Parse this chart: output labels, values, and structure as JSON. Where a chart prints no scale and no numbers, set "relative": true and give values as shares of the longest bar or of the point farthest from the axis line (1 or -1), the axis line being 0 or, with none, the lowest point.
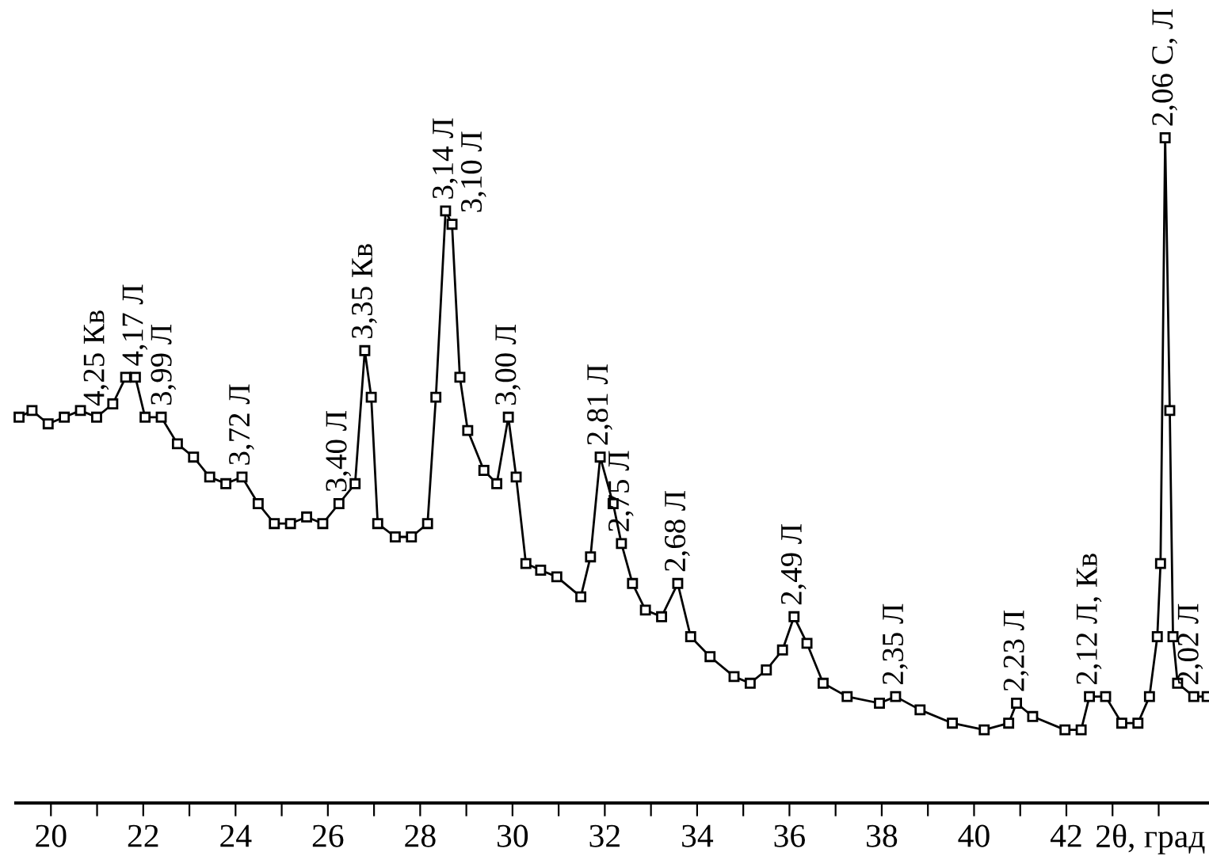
{
  "chart_data": {
    "type": "line",
    "relative": true,
    "xlabel": "2θ, град",
    "marker": "square",
    "line_style": "solid",
    "grid": false,
    "tick_labels": "x",
    "xlim": [
      19.24,
      45.09
    ],
    "xticks": [
      20,
      {
        "value": 21,
        "label": null
      },
      22,
      {
        "value": 23,
        "label": null
      },
      24,
      {
        "value": 25,
        "label": null
      },
      26,
      {
        "value": 27,
        "label": null
      },
      28,
      {
        "value": 29,
        "label": null
      },
      30,
      {
        "value": 31,
        "label": null
      },
      32,
      {
        "value": 33,
        "label": null
      },
      34,
      {
        "value": 35,
        "label": null
      },
      36,
      {
        "value": 37,
        "label": null
      },
      38,
      {
        "value": 39,
        "label": null
      },
      40,
      {
        "value": 41,
        "label": null
      },
      42,
      {
        "value": 43,
        "label": null
      },
      {
        "value": 44,
        "label": null
      }
    ],
    "series": [
      {
        "color": "#000000",
        "x": [
          19.31,
          19.59,
          19.94,
          20.29,
          20.64,
          20.99,
          21.34,
          21.62,
          21.83,
          22.04,
          22.39,
          22.74,
          23.09,
          23.44,
          23.79,
          24.14,
          24.49,
          24.84,
          25.19,
          25.54,
          25.89,
          26.24,
          26.59,
          26.8,
          26.94,
          27.08,
          27.46,
          27.81,
          28.16,
          28.34,
          28.55,
          28.69,
          28.86,
          29.03,
          29.38,
          29.66,
          29.91,
          30.08,
          30.29,
          30.61,
          30.96,
          31.48,
          31.69,
          31.9,
          32.18,
          32.36,
          32.6,
          32.88,
          33.23,
          33.58,
          33.86,
          34.28,
          34.8,
          35.15,
          35.5,
          35.85,
          36.1,
          36.38,
          36.73,
          37.25,
          37.95,
          38.3,
          38.83,
          39.53,
          40.22,
          40.75,
          40.92,
          41.27,
          41.97,
          42.32,
          42.5,
          42.85,
          43.2,
          43.55,
          43.8,
          43.97,
          44.04,
          44.14,
          44.24,
          44.31,
          44.41,
          44.76,
          45.05
        ],
        "values": [
          0.58,
          0.59,
          0.57,
          0.58,
          0.59,
          0.58,
          0.6,
          0.64,
          0.64,
          0.58,
          0.58,
          0.54,
          0.52,
          0.49,
          0.48,
          0.49,
          0.45,
          0.42,
          0.42,
          0.43,
          0.42,
          0.45,
          0.48,
          0.68,
          0.61,
          0.42,
          0.4,
          0.4,
          0.42,
          0.61,
          0.89,
          0.87,
          0.64,
          0.56,
          0.5,
          0.48,
          0.58,
          0.49,
          0.36,
          0.35,
          0.34,
          0.31,
          0.37,
          0.52,
          0.45,
          0.39,
          0.33,
          0.29,
          0.28,
          0.33,
          0.25,
          0.22,
          0.19,
          0.18,
          0.2,
          0.23,
          0.28,
          0.24,
          0.18,
          0.16,
          0.15,
          0.16,
          0.14,
          0.12,
          0.11,
          0.12,
          0.15,
          0.13,
          0.11,
          0.11,
          0.16,
          0.16,
          0.12,
          0.12,
          0.16,
          0.25,
          0.36,
          1.0,
          0.59,
          0.25,
          0.18,
          0.16,
          0.16
        ]
      }
    ],
    "annotations": [
      {
        "text": "4,25 Кв",
        "x": 20.99,
        "y": 0.58
      },
      {
        "text": "4,17 Л",
        "x": 21.83,
        "y": 0.64
      },
      {
        "text": "3,99 Л",
        "x": 22.39,
        "y": 0.58
      },
      {
        "text": "3,72 Л",
        "x": 24.14,
        "y": 0.49
      },
      {
        "text": "3,40 Л",
        "x": 26.24,
        "y": 0.45
      },
      {
        "text": "3,35 Кв",
        "x": 26.8,
        "y": 0.68
      },
      {
        "text": "3,14 Л",
        "x": 28.55,
        "y": 0.89
      },
      {
        "text": "3,10 Л",
        "x": 28.69,
        "y": 0.87
      },
      {
        "text": "3,00 Л",
        "x": 29.91,
        "y": 0.58
      },
      {
        "text": "2,81 Л",
        "x": 31.9,
        "y": 0.52
      },
      {
        "text": "2,75 Л",
        "x": 32.36,
        "y": 0.39
      },
      {
        "text": "2,68 Л",
        "x": 33.58,
        "y": 0.33
      },
      {
        "text": "2,49 Л",
        "x": 36.1,
        "y": 0.28
      },
      {
        "text": "2,35 Л",
        "x": 38.3,
        "y": 0.16
      },
      {
        "text": "2,23 Л",
        "x": 40.92,
        "y": 0.15
      },
      {
        "text": "2,12 Л, Кв",
        "x": 42.5,
        "y": 0.16
      },
      {
        "text": "2,06 С, Л",
        "x": 44.14,
        "y": 1.0
      },
      {
        "text": "2,02 Л",
        "x": 44.76,
        "y": 0.16
      }
    ]
  }
}
